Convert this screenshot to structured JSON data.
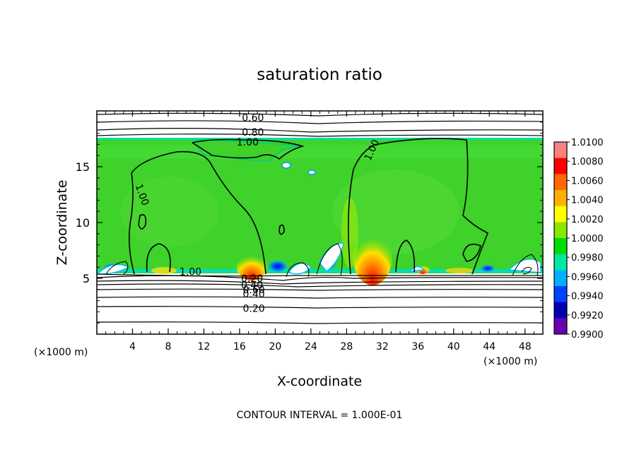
{
  "chart_data": {
    "type": "heatmap",
    "title": "saturation ratio",
    "xlabel": "X-coordinate",
    "ylabel": "Z-coordinate",
    "x_unit_left": "(×1000 m)",
    "x_unit_right": "(×1000 m)",
    "footer": "CONTOUR INTERVAL = 1.000E-01",
    "xlim": [
      0,
      50
    ],
    "ylim": [
      0,
      20
    ],
    "x_ticks": [
      4,
      8,
      12,
      16,
      20,
      24,
      28,
      32,
      36,
      40,
      44,
      48
    ],
    "y_ticks": [
      5,
      10,
      15
    ],
    "grid": false,
    "colorbar": {
      "placement": "right",
      "labels": [
        "1.0100",
        "1.0080",
        "1.0060",
        "1.0040",
        "1.0020",
        "1.0000",
        "0.9980",
        "0.9960",
        "0.9940",
        "0.9920",
        "0.9900"
      ],
      "colors": [
        "#ff8080",
        "#ff0000",
        "#ff6a00",
        "#ffb000",
        "#ffff00",
        "#88e800",
        "#00dd00",
        "#00e8a0",
        "#00b0ff",
        "#0040ff",
        "#0000b0",
        "#6a00b0"
      ]
    },
    "contour_labels": [
      {
        "text": "0.60",
        "x": 17.5,
        "y": 19.4
      },
      {
        "text": "0.80",
        "x": 17.5,
        "y": 18.1
      },
      {
        "text": "1.00",
        "x": 16.9,
        "y": 17.2
      },
      {
        "text": "1.00",
        "x": 30.8,
        "y": 16.5
      },
      {
        "text": "1.00",
        "x": 5.1,
        "y": 12.5
      },
      {
        "text": "1.00",
        "x": 10.5,
        "y": 5.6
      },
      {
        "text": "0.20",
        "x": 17.4,
        "y": 5.0
      },
      {
        "text": "0.40",
        "x": 17.4,
        "y": 4.4
      },
      {
        "text": "0.60",
        "x": 17.6,
        "y": 4.0
      },
      {
        "text": "0.40",
        "x": 17.6,
        "y": 3.6
      },
      {
        "text": "0.20",
        "x": 17.6,
        "y": 2.3
      }
    ],
    "contour_levels_y": [
      0.9,
      2.3,
      3.0,
      3.8,
      4.3,
      4.6,
      4.9,
      5.1,
      5.3,
      17.6,
      18.4,
      19.1,
      19.6
    ],
    "field_bounds": {
      "y_bottom": 5.5,
      "y_top": 17.4,
      "x_left": 0,
      "x_right": 50
    },
    "features": [
      {
        "kind": "moist-plume",
        "x": 31.0,
        "y_top": 7.8
      },
      {
        "kind": "moist-plume",
        "x": 17.8,
        "y_top": 7.0
      },
      {
        "kind": "moist-plume",
        "x": 35.8,
        "y_top": 6.5
      },
      {
        "kind": "dry-pocket",
        "x": 19.8,
        "y": 5.8
      },
      {
        "kind": "dry-pocket",
        "x": 26.0,
        "y": 6.3
      }
    ]
  }
}
